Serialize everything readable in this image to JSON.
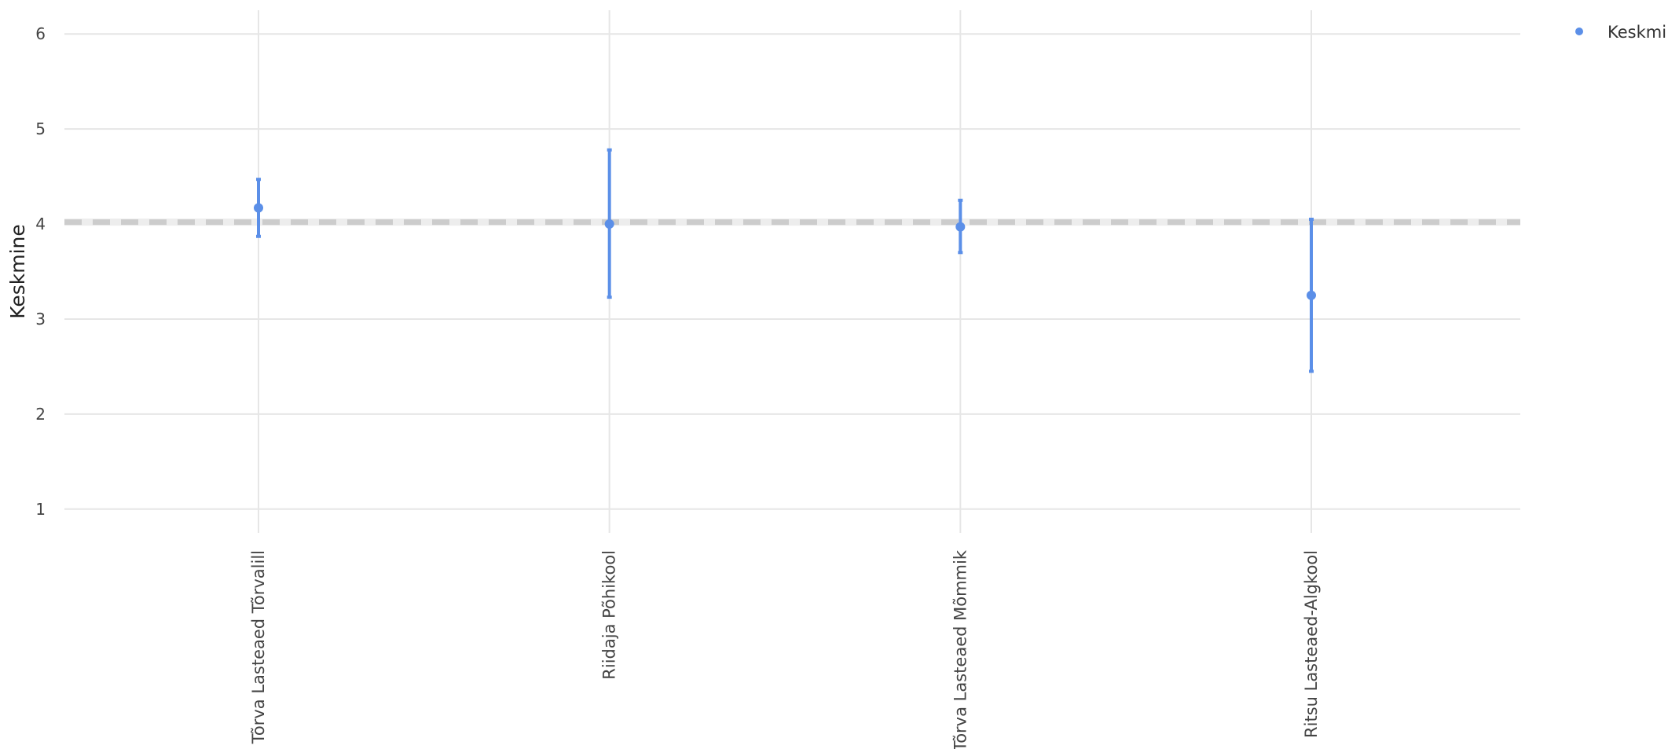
{
  "chart_data": {
    "type": "scatter",
    "ylabel": "Keskmine",
    "ylim": [
      0.75,
      6.25
    ],
    "yticks": [
      1,
      2,
      3,
      4,
      5,
      6
    ],
    "categories": [
      "Tõrva Lasteaed Tõrvalill",
      "Riidaja Põhikool",
      "Tõrva Lasteaed Mõmmik",
      "Ritsu Lasteaed-Algkool"
    ],
    "series": [
      {
        "name": "Keskmi",
        "color": "#5b8fe8",
        "values": [
          4.17,
          4.0,
          3.97,
          3.25
        ],
        "error_low": [
          3.87,
          3.23,
          3.7,
          2.45
        ],
        "error_high": [
          4.47,
          4.78,
          4.25,
          4.05
        ]
      }
    ],
    "reference_line": {
      "y": 4.02,
      "style": "dashed",
      "color": "#cccccc"
    },
    "grid": true,
    "legend_position": "top-right"
  }
}
